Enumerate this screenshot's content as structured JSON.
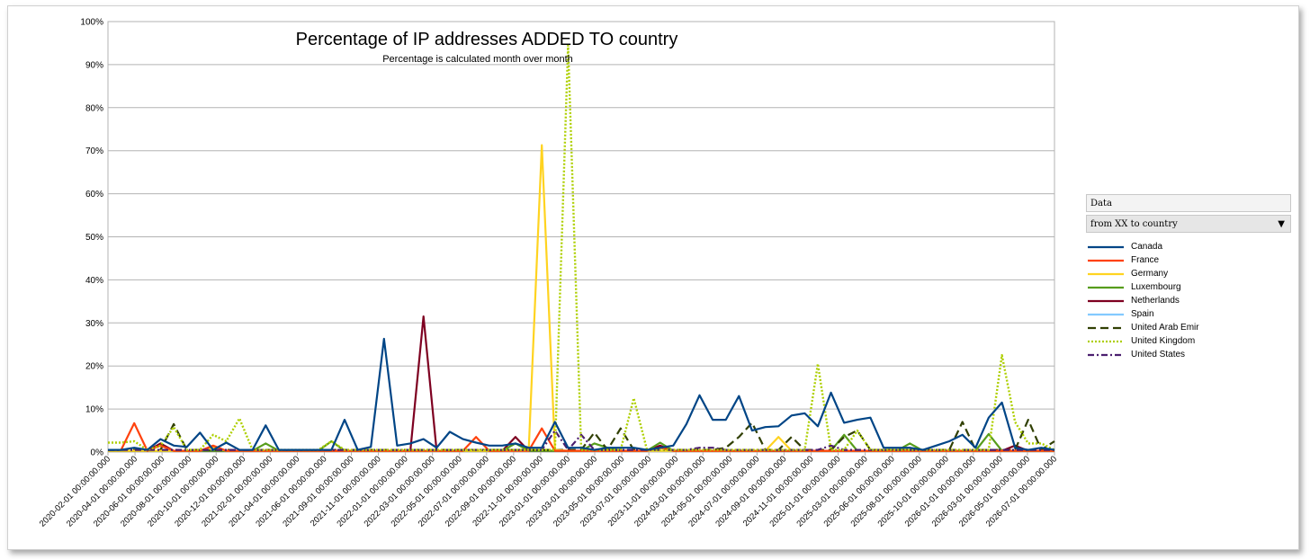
{
  "chart_data": {
    "type": "line",
    "title": "Percentage of IP addresses ADDED TO country",
    "subtitle": "Percentage is calculated month over month",
    "ylim": [
      0,
      100
    ],
    "yticks": [
      "0%",
      "10%",
      "20%",
      "30%",
      "40%",
      "50%",
      "60%",
      "70%",
      "80%",
      "90%",
      "100%"
    ],
    "grid": true,
    "legend_position": "right",
    "x_tick_labels": [
      "2020-02-01 00:00:00.000",
      "2020-04-01 00:00:00.000",
      "2020-06-01 00:00:00.000",
      "2020-08-01 00:00:00.000",
      "2020-10-01 00:00:00.000",
      "2020-12-01 00:00:00.000",
      "2021-02-01 00:00:00.000",
      "2021-04-01 00:00:00.000",
      "2021-06-01 00:00:00.000",
      "2021-09-01 00:00:00.000",
      "2021-11-01 00:00:00.000",
      "2022-01-01 00:00:00.000",
      "2022-03-01 00:00:00.000",
      "2022-05-01 00:00:00.000",
      "2022-07-01 00:00:00.000",
      "2022-09-01 00:00:00.000",
      "2022-11-01 00:00:00.000",
      "2023-01-01 00:00:00.000",
      "2023-03-01 00:00:00.000",
      "2023-05-01 00:00:00.000",
      "2023-07-01 00:00:00.000",
      "2023-11-01 00:00:00.000",
      "2024-03-01 00:00:00.000",
      "2024-05-01 00:00:00.000",
      "2024-07-01 00:00:00.000",
      "2024-09-01 00:00:00.000",
      "2024-11-01 00:00:00.000",
      "2025-01-01 00:00:00.000",
      "2025-03-01 00:00:00.000",
      "2025-06-01 00:00:00.000",
      "2025-08-01 00:00:00.000",
      "2025-10-01 00:00:00.000",
      "2026-01-01 00:00:00.000",
      "2026-03-01 00:00:00.000",
      "2026-05-01 00:00:00.000",
      "2026-07-01 00:00:00.000"
    ],
    "series": [
      {
        "name": "Canada",
        "color": "#004586",
        "dash": "solid",
        "values": [
          0.5,
          0.5,
          1,
          0.5,
          3,
          1.5,
          1.2,
          4.5,
          0.5,
          2.2,
          0.5,
          0.5,
          6.2,
          0.5,
          0.5,
          0.5,
          0.5,
          0.5,
          7.5,
          0.5,
          1.2,
          26.3,
          1.5,
          2,
          3,
          1,
          4.7,
          3,
          2.2,
          1.5,
          1.5,
          2,
          1,
          1,
          7,
          1,
          1,
          0.5,
          1,
          1,
          1,
          0.5,
          1,
          1.5,
          6.5,
          13.2,
          7.5,
          7.5,
          13,
          5,
          5.8,
          6,
          8.5,
          9,
          6,
          13.8,
          6.8,
          7.5,
          8,
          1,
          1,
          1,
          0.5,
          1.5,
          2.5,
          4,
          1,
          8,
          11.5,
          1,
          0.5,
          1,
          0.5
        ]
      },
      {
        "name": "France",
        "color": "#ff420e",
        "dash": "solid",
        "values": [
          0.5,
          0.5,
          6.7,
          0.3,
          1.5,
          0.3,
          0.3,
          0.3,
          1.5,
          0.3,
          0.3,
          0.3,
          0.3,
          0.3,
          0.3,
          0.3,
          0.3,
          0.3,
          0.3,
          0.3,
          0.3,
          0.3,
          0.3,
          0.3,
          0.3,
          0.3,
          0.3,
          0.3,
          3.5,
          0.3,
          0.3,
          0.3,
          0.3,
          5.5,
          0.3,
          0.3,
          0.3,
          0.3,
          0.3,
          0.3,
          0.3,
          0.3,
          1,
          0.3,
          0.3,
          0.3,
          0.3,
          0.3,
          0.3,
          0.3,
          0.3,
          0.3,
          0.3,
          0.3,
          0.3,
          0.3,
          0.3,
          0.3,
          0.3,
          0.3,
          0.3,
          0.3,
          0.3,
          0.3,
          0.3,
          0.3,
          0.3,
          0.3,
          0.3,
          0.3,
          0.3,
          0.3,
          0.3
        ]
      },
      {
        "name": "Germany",
        "color": "#ffd320",
        "dash": "solid",
        "values": [
          0.3,
          0.3,
          0.3,
          0.3,
          0.3,
          0.3,
          0.3,
          0.3,
          1,
          0.3,
          0.3,
          0.3,
          0.3,
          0.3,
          0.3,
          0.3,
          0.3,
          0.3,
          0.3,
          0.3,
          0.3,
          0.3,
          0.3,
          0.3,
          0.3,
          0.3,
          0.3,
          0.3,
          0.3,
          0.3,
          0.3,
          0.3,
          0.3,
          71.3,
          0.5,
          0.3,
          0.3,
          0.3,
          0.3,
          0.3,
          0.3,
          0.3,
          0.3,
          0.3,
          0.3,
          0.3,
          0.3,
          0.3,
          0.3,
          0.3,
          0.3,
          3.5,
          0.3,
          0.3,
          0.3,
          0.3,
          0.3,
          0.3,
          0.3,
          0.3,
          0.3,
          0.3,
          0.3,
          0.3,
          0.3,
          0.3,
          0.3,
          0.3,
          0.3,
          0.3,
          0.3,
          0.3,
          0.3
        ]
      },
      {
        "name": "Luxembourg",
        "color": "#579d1c",
        "dash": "solid",
        "values": [
          0.3,
          0.3,
          0.3,
          0.3,
          0.3,
          0.3,
          0.3,
          0.3,
          0.3,
          0.3,
          0.3,
          0.3,
          2,
          0.3,
          0.3,
          0.3,
          0.3,
          2.5,
          0.3,
          0.3,
          0.3,
          0.3,
          0.3,
          0.3,
          0.3,
          0.3,
          0.3,
          0.3,
          0.3,
          0.3,
          0.3,
          2,
          0.3,
          0.3,
          0.3,
          0.3,
          0.3,
          2,
          1,
          0.3,
          0.3,
          0.3,
          2.2,
          0.3,
          0.3,
          0.3,
          0.3,
          0.3,
          0.3,
          0.3,
          0.3,
          0.3,
          0.3,
          0.3,
          0.3,
          0.3,
          4,
          0.3,
          0.3,
          0.3,
          0.3,
          2,
          0.3,
          0.3,
          0.3,
          0.3,
          0.3,
          4.2,
          0.3,
          0.3,
          0.3,
          0.3,
          0.3
        ]
      },
      {
        "name": "Netherlands",
        "color": "#7e0021",
        "dash": "solid",
        "values": [
          0.3,
          0.3,
          0.3,
          0.3,
          2,
          0.3,
          0.3,
          0.3,
          0.3,
          0.3,
          0.3,
          0.3,
          0.3,
          0.3,
          0.3,
          0.3,
          0.3,
          0.3,
          0.3,
          0.3,
          0.3,
          0.3,
          0.3,
          0.3,
          31.5,
          0.3,
          0.3,
          0.3,
          0.3,
          0.3,
          0.3,
          3.5,
          0.3,
          0.3,
          0.3,
          0.3,
          0.3,
          0.3,
          0.3,
          0.3,
          0.3,
          0.3,
          1.5,
          0.3,
          0.3,
          0.3,
          0.3,
          0.3,
          0.3,
          0.3,
          0.3,
          0.3,
          0.3,
          0.3,
          0.3,
          0.3,
          0.3,
          0.3,
          0.3,
          0.3,
          0.3,
          0.3,
          0.3,
          0.3,
          0.3,
          0.3,
          0.3,
          0.3,
          0.3,
          1.5,
          0.3,
          0.3,
          0.3
        ]
      },
      {
        "name": "Spain",
        "color": "#83caff",
        "dash": "solid",
        "values": [
          0.3,
          0.3,
          0.3,
          0.3,
          0.3,
          0.3,
          0.3,
          0.3,
          0.3,
          0.3,
          0.3,
          0.3,
          0.3,
          0.3,
          0.3,
          0.3,
          0.3,
          0.3,
          0.3,
          0.3,
          0.3,
          0.3,
          0.3,
          0.3,
          0.3,
          0.3,
          0.3,
          0.3,
          0.3,
          0.3,
          0.3,
          0.3,
          0.3,
          0.3,
          0.3,
          0.3,
          0.3,
          0.3,
          0.3,
          0.3,
          0.3,
          0.3,
          0.3,
          0.3,
          0.3,
          0.3,
          0.3,
          0.3,
          0.3,
          0.3,
          0.3,
          0.3,
          0.3,
          0.3,
          0.3,
          0.3,
          0.3,
          0.3,
          0.3,
          0.3,
          0.3,
          0.3,
          0.3,
          0.3,
          0.3,
          0.3,
          0.3,
          0.3,
          0.3,
          0.3,
          0.3,
          0.3,
          0.3
        ]
      },
      {
        "name": "United Arab Emir",
        "color": "#314004",
        "dash": "dashed",
        "values": [
          0.5,
          0.5,
          0.5,
          0.5,
          0.5,
          6.5,
          0.5,
          0.5,
          0.5,
          0.5,
          0.5,
          0.5,
          0.5,
          0.5,
          0.5,
          0.5,
          0.5,
          0.5,
          0.5,
          0.5,
          0.5,
          0.5,
          0.5,
          0.5,
          0.5,
          0.5,
          0.5,
          0.5,
          0.5,
          0.5,
          0.5,
          0.5,
          0.5,
          0.5,
          0.5,
          0.5,
          0.5,
          4.5,
          0.5,
          5.5,
          0.5,
          0.5,
          0.5,
          0.5,
          0.5,
          0.5,
          0.5,
          1,
          3.5,
          6.8,
          0.5,
          0.5,
          3.5,
          0.5,
          0.5,
          0.5,
          3.5,
          5,
          0.5,
          0.5,
          0.5,
          0.5,
          0.5,
          0.5,
          0.5,
          7,
          0.5,
          0.5,
          0.5,
          0.5,
          7.5,
          0.5,
          2.5
        ]
      },
      {
        "name": "United Kingdom",
        "color": "#aecf00",
        "dash": "dotted",
        "values": [
          2.2,
          2.2,
          2.5,
          0.5,
          1.5,
          5.8,
          0.5,
          0.5,
          4,
          2.5,
          7.8,
          0.5,
          0.5,
          0.5,
          0.5,
          0.5,
          0.5,
          2.5,
          0.5,
          0.5,
          0.5,
          0.5,
          0.5,
          0.5,
          0.5,
          0.5,
          0.5,
          0.5,
          0.5,
          0.5,
          0.5,
          0.5,
          0.5,
          0.5,
          0.5,
          94.5,
          0.5,
          0.5,
          0.5,
          0.5,
          12.5,
          0.5,
          0.5,
          0.5,
          0.5,
          0.5,
          0.5,
          0.5,
          0.5,
          0.5,
          0.5,
          0.5,
          0.5,
          0.5,
          20.5,
          0.5,
          0.5,
          5,
          0.5,
          0.5,
          0.5,
          0.5,
          0.5,
          0.5,
          0.5,
          0.5,
          0.5,
          0.5,
          22.5,
          7,
          2,
          2,
          0.5
        ]
      },
      {
        "name": "United States",
        "color": "#4b1f6f",
        "dash": "dashdot",
        "values": [
          0.5,
          0.5,
          0.5,
          0.5,
          0.5,
          0.5,
          0.5,
          0.5,
          0.5,
          0.5,
          0.5,
          0.5,
          0.5,
          0.5,
          0.5,
          0.5,
          0.5,
          0.5,
          0.5,
          0.5,
          0.5,
          0.5,
          0.5,
          0.5,
          0.5,
          0.5,
          0.5,
          0.5,
          0.5,
          0.5,
          0.5,
          0.5,
          0.5,
          0.5,
          5,
          0.5,
          4,
          0.5,
          0.5,
          0.5,
          0.5,
          0.5,
          0.5,
          0.5,
          0.5,
          1,
          1,
          0.5,
          0.5,
          0.5,
          0.5,
          0.5,
          0.5,
          0.5,
          0.5,
          1.5,
          0.5,
          0.5,
          0.5,
          0.5,
          0.5,
          0.5,
          0.5,
          0.5,
          0.5,
          0.5,
          0.5,
          0.5,
          0.5,
          0.5,
          0.5,
          0.5,
          0.5
        ]
      }
    ]
  },
  "sidebar": {
    "data_label": "Data",
    "selected_option": "from XX to country"
  }
}
